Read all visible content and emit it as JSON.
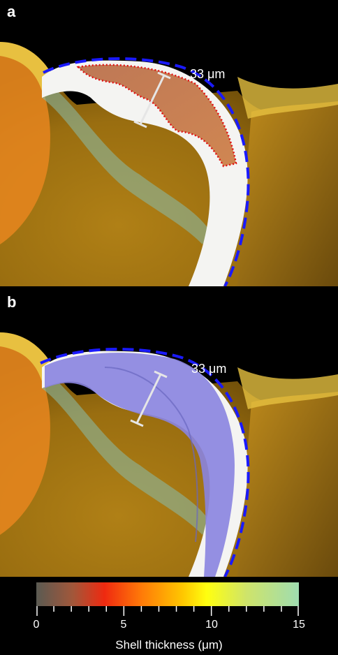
{
  "panels": [
    {
      "letter": "a",
      "measurement": "33 μm"
    },
    {
      "letter": "b",
      "measurement": "33 μm"
    }
  ],
  "colorbar": {
    "title": "Shell thickness (μm)",
    "ticks": [
      "0",
      "5",
      "10",
      "15"
    ],
    "range": [
      0,
      15
    ],
    "colors": [
      "#5a5a52",
      "#a2573a",
      "#ef2a10",
      "#ff7a08",
      "#ffc800",
      "#ffff10",
      "#cfe46a",
      "#9fdcb0"
    ]
  },
  "overlay_colors": {
    "outer_dash": "#1a1aff",
    "inner_dotted": "#e01010",
    "shell_fill_b": "#8a84e0"
  }
}
